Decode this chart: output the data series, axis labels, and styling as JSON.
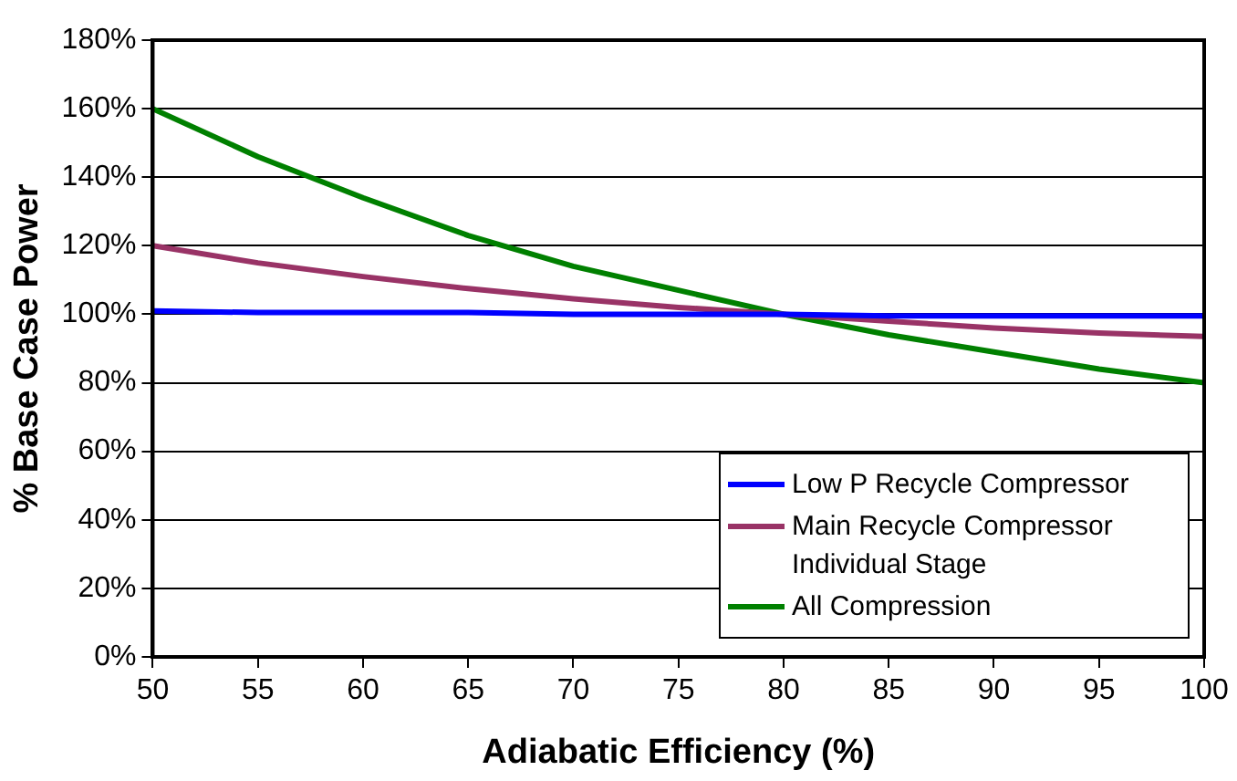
{
  "chart_data": {
    "type": "line",
    "xlabel": "Adiabatic Efficiency (%)",
    "ylabel": "% Base Case Power",
    "x": [
      50,
      55,
      60,
      65,
      70,
      75,
      80,
      85,
      90,
      95,
      100
    ],
    "series": [
      {
        "name": "Low P Recycle Compressor",
        "color": "#0000ff",
        "values": [
          101,
          100.5,
          100.5,
          100.5,
          100,
          100,
          100,
          99.5,
          99.5,
          99.5,
          99.5
        ]
      },
      {
        "name": "Main Recycle Compressor Individual Stage",
        "color": "#993366",
        "values": [
          120,
          115,
          111,
          107.5,
          104.5,
          102,
          100,
          98,
          96,
          94.5,
          93.5
        ]
      },
      {
        "name": "All Compression",
        "color": "#008000",
        "values": [
          160,
          146,
          134,
          123,
          114,
          107,
          100,
          94,
          89,
          84,
          80
        ]
      }
    ],
    "xlim": [
      50,
      100
    ],
    "xticks": [
      50,
      55,
      60,
      65,
      70,
      75,
      80,
      85,
      90,
      95,
      100
    ],
    "ylim": [
      0,
      180
    ],
    "yticks": [
      {
        "value": 0,
        "label": "0%"
      },
      {
        "value": 20,
        "label": "20%"
      },
      {
        "value": 40,
        "label": "40%"
      },
      {
        "value": 60,
        "label": "60%"
      },
      {
        "value": 80,
        "label": "80%"
      },
      {
        "value": 100,
        "label": "100%"
      },
      {
        "value": 120,
        "label": "120%"
      },
      {
        "value": 140,
        "label": "140%"
      },
      {
        "value": 160,
        "label": "160%"
      },
      {
        "value": 180,
        "label": "180%"
      }
    ],
    "grid": "y",
    "legend": "bottom right",
    "marker": "none",
    "line_style": "solid"
  }
}
